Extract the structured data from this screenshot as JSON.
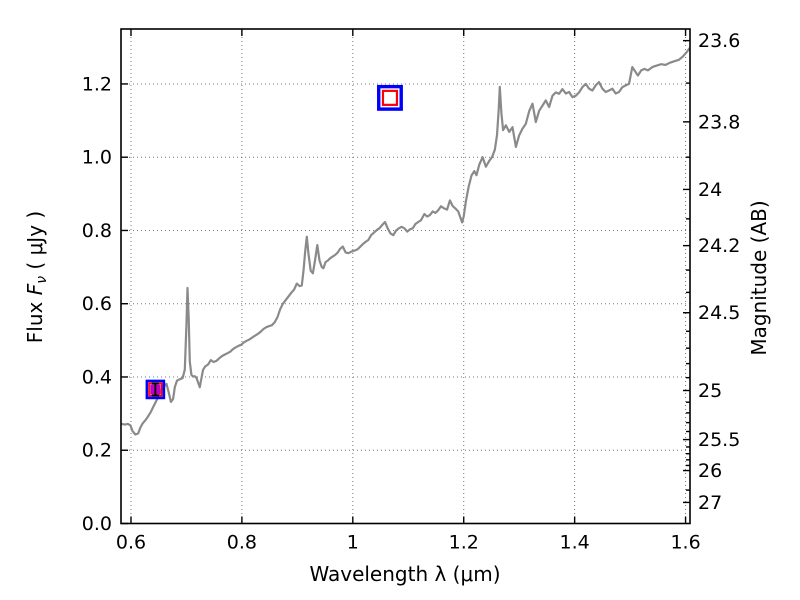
{
  "figure": {
    "background": "#ffffff",
    "axis_color": "#000000",
    "grid_color": "#777777",
    "line_color": "#8a8a8a",
    "blue_marker_color": "#0000ff",
    "red_marker_color": "#ff0000",
    "magenta_marker_color": "#c000c0",
    "errorbar_color": "#000000"
  },
  "chart_data": {
    "type": "line",
    "title": "",
    "xlabel": "Wavelength  λ (μm)",
    "ylabel_left": {
      "pre": "Flux  ",
      "sym": "F",
      "sub": "ν",
      "post": "  ( μJy )"
    },
    "ylabel_right": "Magnitude (AB)",
    "xlim": [
      0.582,
      1.608
    ],
    "ylim": [
      0,
      1.35
    ],
    "grid": "dotted",
    "legend": "none",
    "x_ticks": {
      "values": [
        0.6,
        0.8,
        1.0,
        1.2,
        1.4,
        1.6
      ],
      "labels": [
        "0.6",
        "0.8",
        "1",
        "1.2",
        "1.4",
        "1.6"
      ]
    },
    "y_ticks_left": {
      "values": [
        0.0,
        0.2,
        0.4,
        0.6,
        0.8,
        1.0,
        1.2
      ],
      "labels": [
        "0.0",
        "0.2",
        "0.4",
        "0.6",
        "0.8",
        "1.0",
        "1.2"
      ]
    },
    "mag_zeropoint_1uJy": 23.9,
    "y_ticks_right_major": {
      "mags": [
        23.6,
        23.8,
        24,
        24.2,
        24.5,
        25,
        25.5,
        26,
        27
      ],
      "labels": [
        "23.6",
        "23.8",
        "24",
        "24.2",
        "24.5",
        "25",
        "25.5",
        "26",
        "27"
      ]
    },
    "y_ticks_right_minor_mags": [
      23.7,
      23.9,
      24.1,
      24.3,
      24.4,
      24.6,
      24.7,
      24.8,
      24.9,
      25.1,
      25.2,
      25.3,
      25.4,
      25.6,
      25.7,
      25.8,
      25.9,
      26.5
    ],
    "series": [
      {
        "name": "spectrum",
        "type": "line",
        "color": "#8a8a8a",
        "x": [
          0.583,
          0.589,
          0.594,
          0.599,
          0.603,
          0.608,
          0.613,
          0.617,
          0.621,
          0.626,
          0.631,
          0.636,
          0.64,
          0.644,
          0.648,
          0.652,
          0.656,
          0.66,
          0.664,
          0.668,
          0.672,
          0.676,
          0.679,
          0.683,
          0.688,
          0.693,
          0.697,
          0.7,
          0.702,
          0.704,
          0.706,
          0.709,
          0.712,
          0.715,
          0.718,
          0.721,
          0.724,
          0.727,
          0.73,
          0.734,
          0.739,
          0.744,
          0.749,
          0.754,
          0.759,
          0.764,
          0.769,
          0.774,
          0.779,
          0.784,
          0.789,
          0.794,
          0.799,
          0.804,
          0.809,
          0.814,
          0.819,
          0.824,
          0.829,
          0.834,
          0.839,
          0.844,
          0.849,
          0.854,
          0.859,
          0.864,
          0.869,
          0.874,
          0.879,
          0.884,
          0.889,
          0.894,
          0.899,
          0.904,
          0.908,
          0.911,
          0.914,
          0.917,
          0.92,
          0.924,
          0.928,
          0.932,
          0.936,
          0.94,
          0.944,
          0.947,
          0.951,
          0.955,
          0.959,
          0.963,
          0.968,
          0.973,
          0.977,
          0.982,
          0.987,
          0.992,
          0.997,
          1.003,
          1.008,
          1.013,
          1.019,
          1.024,
          1.028,
          1.033,
          1.038,
          1.043,
          1.048,
          1.053,
          1.058,
          1.063,
          1.068,
          1.073,
          1.078,
          1.083,
          1.088,
          1.093,
          1.098,
          1.103,
          1.108,
          1.113,
          1.118,
          1.123,
          1.129,
          1.134,
          1.139,
          1.144,
          1.149,
          1.154,
          1.159,
          1.165,
          1.17,
          1.175,
          1.18,
          1.185,
          1.19,
          1.194,
          1.197,
          1.2,
          1.204,
          1.209,
          1.214,
          1.219,
          1.223,
          1.228,
          1.234,
          1.24,
          1.246,
          1.251,
          1.256,
          1.26,
          1.263,
          1.265,
          1.268,
          1.271,
          1.276,
          1.282,
          1.288,
          1.294,
          1.3,
          1.306,
          1.312,
          1.318,
          1.324,
          1.33,
          1.336,
          1.342,
          1.348,
          1.354,
          1.36,
          1.366,
          1.372,
          1.378,
          1.384,
          1.39,
          1.396,
          1.402,
          1.408,
          1.414,
          1.42,
          1.426,
          1.432,
          1.438,
          1.444,
          1.45,
          1.456,
          1.462,
          1.468,
          1.474,
          1.48,
          1.486,
          1.492,
          1.498,
          1.504,
          1.51,
          1.514,
          1.52,
          1.526,
          1.532,
          1.54,
          1.548,
          1.556,
          1.564,
          1.572,
          1.58,
          1.588,
          1.596,
          1.602,
          1.607
        ],
        "y": [
          0.272,
          0.27,
          0.272,
          0.268,
          0.252,
          0.243,
          0.246,
          0.262,
          0.273,
          0.282,
          0.293,
          0.305,
          0.318,
          0.33,
          0.342,
          0.355,
          0.367,
          0.375,
          0.381,
          0.358,
          0.332,
          0.34,
          0.372,
          0.39,
          0.394,
          0.397,
          0.42,
          0.54,
          0.643,
          0.56,
          0.442,
          0.406,
          0.401,
          0.402,
          0.398,
          0.385,
          0.372,
          0.396,
          0.42,
          0.429,
          0.434,
          0.446,
          0.441,
          0.444,
          0.451,
          0.457,
          0.461,
          0.465,
          0.469,
          0.476,
          0.481,
          0.485,
          0.488,
          0.495,
          0.499,
          0.503,
          0.508,
          0.513,
          0.518,
          0.524,
          0.531,
          0.536,
          0.539,
          0.541,
          0.549,
          0.563,
          0.585,
          0.6,
          0.61,
          0.62,
          0.63,
          0.638,
          0.655,
          0.648,
          0.65,
          0.69,
          0.74,
          0.783,
          0.738,
          0.69,
          0.683,
          0.72,
          0.76,
          0.718,
          0.7,
          0.697,
          0.714,
          0.718,
          0.724,
          0.728,
          0.733,
          0.74,
          0.75,
          0.756,
          0.74,
          0.738,
          0.742,
          0.745,
          0.748,
          0.755,
          0.764,
          0.77,
          0.774,
          0.787,
          0.794,
          0.801,
          0.806,
          0.815,
          0.823,
          0.805,
          0.792,
          0.787,
          0.8,
          0.806,
          0.81,
          0.806,
          0.797,
          0.803,
          0.806,
          0.818,
          0.823,
          0.828,
          0.845,
          0.838,
          0.842,
          0.852,
          0.848,
          0.855,
          0.866,
          0.86,
          0.857,
          0.882,
          0.867,
          0.86,
          0.852,
          0.835,
          0.822,
          0.838,
          0.88,
          0.92,
          0.95,
          0.962,
          0.951,
          0.98,
          1.0,
          0.974,
          0.99,
          1.0,
          1.02,
          1.06,
          1.13,
          1.192,
          1.12,
          1.074,
          1.087,
          1.069,
          1.082,
          1.028,
          1.06,
          1.078,
          1.091,
          1.126,
          1.146,
          1.096,
          1.127,
          1.141,
          1.155,
          1.137,
          1.168,
          1.177,
          1.173,
          1.186,
          1.174,
          1.178,
          1.164,
          1.168,
          1.177,
          1.191,
          1.2,
          1.187,
          1.182,
          1.196,
          1.205,
          1.187,
          1.178,
          1.182,
          1.187,
          1.174,
          1.178,
          1.191,
          1.196,
          1.2,
          1.246,
          1.232,
          1.223,
          1.237,
          1.241,
          1.237,
          1.246,
          1.25,
          1.254,
          1.252,
          1.258,
          1.262,
          1.266,
          1.276,
          1.287,
          1.297
        ]
      },
      {
        "name": "photometry-blue-open-squares",
        "type": "scatter",
        "marker": "open-square",
        "color": "#0000ff",
        "points": [
          [
            0.644,
            0.366
          ],
          [
            1.067,
            1.162
          ]
        ]
      },
      {
        "name": "photometry-red-open-squares",
        "type": "scatter",
        "marker": "open-square",
        "color": "#ff0000",
        "points": [
          [
            0.644,
            0.366
          ],
          [
            1.067,
            1.162
          ]
        ]
      },
      {
        "name": "photometry-magenta-filled-square",
        "type": "scatter",
        "marker": "filled-square",
        "color": "#c000c0",
        "points": [
          [
            0.644,
            0.366
          ]
        ],
        "yerr": [
          0.0165
        ]
      }
    ]
  }
}
